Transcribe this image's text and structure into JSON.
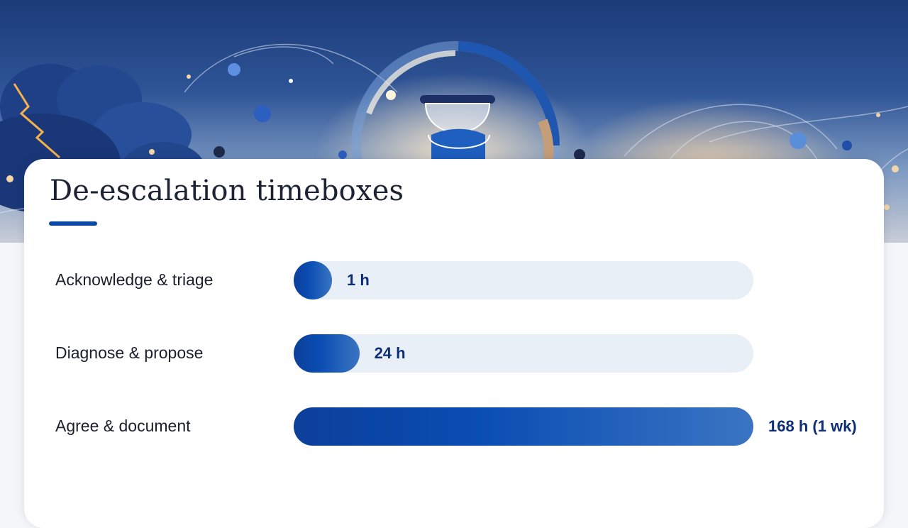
{
  "colors": {
    "accent": "#0a49a6",
    "bar_fill_start": "#0c3f9a",
    "bar_fill_end": "#3a74c2",
    "track": "#e9eff7",
    "value_text": "#0d2f77"
  },
  "hero": {
    "illustration": "hourglass-icon"
  },
  "chart_data": {
    "type": "bar",
    "orientation": "horizontal",
    "title": "De-escalation timeboxes",
    "categories": [
      "Acknowledge & triage",
      "Diagnose & propose",
      "Agree & document"
    ],
    "values": [
      1,
      24,
      168
    ],
    "value_labels": [
      "1 h",
      "24 h",
      "168 h (1 wk)"
    ],
    "unit": "h",
    "xlim": [
      0,
      168
    ],
    "grid": false,
    "legend": "none"
  }
}
